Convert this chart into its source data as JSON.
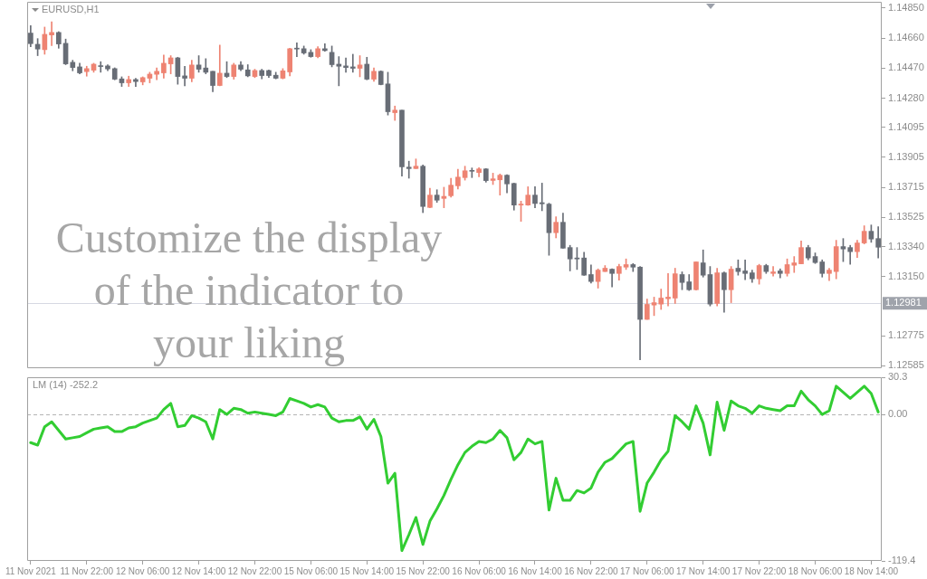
{
  "chart_data": [
    {
      "type": "candlestick",
      "title": "EURUSD,H1",
      "categories": [
        null,
        null,
        null,
        null,
        null,
        null,
        null,
        null,
        null,
        null,
        null,
        null,
        null,
        null,
        null,
        null,
        null,
        null,
        null,
        null,
        null,
        null,
        null,
        null,
        null,
        null,
        null,
        null,
        null,
        null,
        null,
        null,
        null,
        null,
        null,
        null,
        null,
        null,
        null,
        null,
        null,
        null,
        null,
        null,
        null,
        null,
        null,
        null,
        null,
        null,
        null,
        null,
        null,
        null,
        null,
        null,
        null,
        null,
        null,
        null,
        null,
        null,
        null,
        null,
        null,
        null,
        null,
        null,
        null,
        null,
        null,
        null,
        null,
        null,
        null,
        null,
        null,
        null,
        null,
        null,
        null,
        null,
        null,
        null,
        null,
        null,
        null,
        null,
        null,
        null,
        null,
        null,
        null,
        null,
        null,
        null,
        null,
        null,
        null,
        null,
        null,
        null,
        null,
        null,
        null,
        null,
        null,
        null,
        null,
        null,
        null,
        null,
        null,
        null,
        null,
        null,
        null,
        null,
        null,
        null,
        null,
        null
      ],
      "ohlc": [
        [
          1.14692,
          1.14739,
          1.14606,
          1.14625
        ],
        [
          1.14621,
          1.14657,
          1.14549,
          1.14591
        ],
        [
          1.14587,
          1.1473,
          1.14558,
          1.14684
        ],
        [
          1.1468,
          1.14764,
          1.14612,
          1.14696
        ],
        [
          1.14696,
          1.14701,
          1.14596,
          1.14623
        ],
        [
          1.14627,
          1.14654,
          1.14492,
          1.14497
        ],
        [
          1.14507,
          1.1452,
          1.14453,
          1.14474
        ],
        [
          1.14478,
          1.14501,
          1.14434,
          1.1444
        ],
        [
          1.14448,
          1.14482,
          1.14419,
          1.14467
        ],
        [
          1.14457,
          1.14501,
          1.14444,
          1.14495
        ],
        [
          1.14484,
          1.14511,
          1.14444,
          1.1448
        ],
        [
          1.14484,
          1.14492,
          1.14453,
          1.14465
        ],
        [
          1.14467,
          1.14472,
          1.14396,
          1.144
        ],
        [
          1.14402,
          1.14415,
          1.14354,
          1.14377
        ],
        [
          1.14377,
          1.14419,
          1.14354,
          1.14398
        ],
        [
          1.14398,
          1.14406,
          1.14354,
          1.14385
        ],
        [
          1.14383,
          1.14415,
          1.14364,
          1.1441
        ],
        [
          1.14406,
          1.14444,
          1.14377,
          1.14432
        ],
        [
          1.14431,
          1.14472,
          1.14396,
          1.1445
        ],
        [
          1.1444,
          1.14553,
          1.14406,
          1.14501
        ],
        [
          1.14497,
          1.14549,
          1.14434,
          1.14535
        ],
        [
          1.14535,
          1.14539,
          1.14368,
          1.14417
        ],
        [
          1.14421,
          1.14482,
          1.14358,
          1.14406
        ],
        [
          1.14406,
          1.1452,
          1.14383,
          1.1449
        ],
        [
          1.1449,
          1.14549,
          1.14444,
          1.14463
        ],
        [
          1.14471,
          1.1453,
          1.14434,
          1.14444
        ],
        [
          1.1445,
          1.1445,
          1.1432,
          1.1436
        ],
        [
          1.1436,
          1.14616,
          1.14358,
          1.14438
        ],
        [
          1.14438,
          1.14511,
          1.1441,
          1.14417
        ],
        [
          1.14417,
          1.14501,
          1.144,
          1.1449
        ],
        [
          1.1449,
          1.14511,
          1.14453,
          1.14463
        ],
        [
          1.14459,
          1.14492,
          1.14415,
          1.14421
        ],
        [
          1.14417,
          1.14463,
          1.1441,
          1.14455
        ],
        [
          1.14455,
          1.14463,
          1.14402,
          1.14423
        ],
        [
          1.14455,
          1.14459,
          1.1441,
          1.14423
        ],
        [
          1.14425,
          1.14444,
          1.14402,
          1.14406
        ],
        [
          1.14406,
          1.14467,
          1.14402,
          1.14453
        ],
        [
          1.14446,
          1.14596,
          1.14421,
          1.14593
        ],
        [
          1.14595,
          1.14631,
          1.14543,
          1.14591
        ],
        [
          1.14593,
          1.1461,
          1.14558,
          1.14566
        ],
        [
          1.1457,
          1.14587,
          1.14539,
          1.14543
        ],
        [
          1.14543,
          1.14606,
          1.14535,
          1.14593
        ],
        [
          1.14593,
          1.14625,
          1.14577,
          1.14581
        ],
        [
          1.1457,
          1.1461,
          1.14478,
          1.14492
        ],
        [
          1.14495,
          1.14543,
          1.14358,
          1.14482
        ],
        [
          1.14484,
          1.14535,
          1.14444,
          1.14474
        ],
        [
          1.14478,
          1.14558,
          1.14444,
          1.14469
        ],
        [
          1.14469,
          1.14549,
          1.14415,
          1.1449
        ],
        [
          1.14495,
          1.14539,
          1.14396,
          1.144
        ],
        [
          1.144,
          1.14472,
          1.14387,
          1.1445
        ],
        [
          1.1445,
          1.14453,
          1.14364,
          1.14366
        ],
        [
          1.1437,
          1.14444,
          1.14173,
          1.14194
        ],
        [
          1.14188,
          1.1423,
          1.14139,
          1.14204
        ],
        [
          1.14204,
          1.14204,
          1.13786,
          1.13845
        ],
        [
          1.13843,
          1.13881,
          1.13773,
          1.13834
        ],
        [
          1.13834,
          1.13895,
          1.13834,
          1.13849
        ],
        [
          1.13849,
          1.13857,
          1.13555,
          1.13594
        ],
        [
          1.13588,
          1.1371,
          1.13586,
          1.13666
        ],
        [
          1.13666,
          1.137,
          1.1362,
          1.13634
        ],
        [
          1.13645,
          1.13716,
          1.13586,
          1.13658
        ],
        [
          1.13662,
          1.13773,
          1.13653,
          1.13729
        ],
        [
          1.13725,
          1.1383,
          1.13704,
          1.1378
        ],
        [
          1.13777,
          1.13849,
          1.13761,
          1.1382
        ],
        [
          1.1382,
          1.13838,
          1.13777,
          1.13817
        ],
        [
          1.13809,
          1.1384,
          1.13782,
          1.13832
        ],
        [
          1.13832,
          1.13834,
          1.13748,
          1.13758
        ],
        [
          1.13759,
          1.13805,
          1.13733,
          1.13769
        ],
        [
          1.13763,
          1.138,
          1.13666,
          1.13792
        ],
        [
          1.13792,
          1.13796,
          1.13681,
          1.13737
        ],
        [
          1.1374,
          1.13742,
          1.13571,
          1.13603
        ],
        [
          1.13603,
          1.13628,
          1.135,
          1.13609
        ],
        [
          1.13603,
          1.13719,
          1.13601,
          1.13666
        ],
        [
          1.13666,
          1.13719,
          1.13586,
          1.13613
        ],
        [
          1.13618,
          1.13742,
          1.13567,
          1.13611
        ],
        [
          1.13609,
          1.13615,
          1.13285,
          1.13428
        ],
        [
          1.13428,
          1.13529,
          1.13395,
          1.13494
        ],
        [
          1.13494,
          1.13552,
          1.13329,
          1.1333
        ],
        [
          1.13334,
          1.13348,
          1.13186,
          1.13262
        ],
        [
          1.13268,
          1.13334,
          1.13195,
          1.13262
        ],
        [
          1.13268,
          1.13304,
          1.13157,
          1.13159
        ],
        [
          1.13163,
          1.13224,
          1.13109,
          1.13119
        ],
        [
          1.13119,
          1.13199,
          1.13077,
          1.13191
        ],
        [
          1.13182,
          1.1322,
          1.13182,
          1.13203
        ],
        [
          1.13197,
          1.13199,
          1.13085,
          1.1317
        ],
        [
          1.1317,
          1.13228,
          1.13128,
          1.13214
        ],
        [
          1.1321,
          1.13262,
          1.13195,
          1.13226
        ],
        [
          1.13226,
          1.13233,
          1.13182,
          1.1321
        ],
        [
          1.1321,
          1.13214,
          1.12623,
          1.12879
        ],
        [
          1.12879,
          1.13008,
          1.12879,
          1.12974
        ],
        [
          1.1297,
          1.1302,
          1.12903,
          1.12985
        ],
        [
          1.12976,
          1.13071,
          1.12942,
          1.13014
        ],
        [
          1.1301,
          1.1317,
          1.12964,
          1.1302
        ],
        [
          1.13014,
          1.13203,
          1.1298,
          1.13168
        ],
        [
          1.13163,
          1.1318,
          1.13067,
          1.13113
        ],
        [
          1.13117,
          1.13163,
          1.13062,
          1.13067
        ],
        [
          1.13067,
          1.13243,
          1.13065,
          1.13243
        ],
        [
          1.13237,
          1.13319,
          1.13147,
          1.13159
        ],
        [
          1.13163,
          1.13214,
          1.12964,
          1.12976
        ],
        [
          1.1298,
          1.13203,
          1.12964,
          1.13174
        ],
        [
          1.13174,
          1.1318,
          1.12924,
          1.13067
        ],
        [
          1.13067,
          1.13214,
          1.12985,
          1.13197
        ],
        [
          1.13203,
          1.13256,
          1.13159,
          1.13182
        ],
        [
          1.13186,
          1.13256,
          1.1313,
          1.1317
        ],
        [
          1.13174,
          1.13191,
          1.13113,
          1.13136
        ],
        [
          1.13136,
          1.13228,
          1.13102,
          1.1322
        ],
        [
          1.1322,
          1.13228,
          1.1317,
          1.13182
        ],
        [
          1.1317,
          1.13214,
          1.13153,
          1.1318
        ],
        [
          1.13186,
          1.13199,
          1.13142,
          1.1317
        ],
        [
          1.1317,
          1.13262,
          1.13153,
          1.13226
        ],
        [
          1.13222,
          1.13277,
          1.13176,
          1.13237
        ],
        [
          1.13231,
          1.13376,
          1.13231,
          1.13334
        ],
        [
          1.13334,
          1.13348,
          1.13256,
          1.13268
        ],
        [
          1.13277,
          1.133,
          1.13233,
          1.13239
        ],
        [
          1.13243,
          1.13256,
          1.13147,
          1.1317
        ],
        [
          1.1317,
          1.13203,
          1.13125,
          1.13191
        ],
        [
          1.13182,
          1.1338,
          1.13136,
          1.1334
        ],
        [
          1.1334,
          1.13391,
          1.13245,
          1.13325
        ],
        [
          1.13334,
          1.13348,
          1.13228,
          1.13308
        ],
        [
          1.13308,
          1.1338,
          1.13271,
          1.13363
        ],
        [
          1.13363,
          1.13472,
          1.13357,
          1.13437
        ],
        [
          1.13437,
          1.13477,
          1.13367,
          1.13388
        ],
        [
          1.13391,
          1.13466,
          1.13268,
          1.13336
        ]
      ],
      "colors": [
        "#686d76",
        "#686d76",
        "#ee8372",
        "#ee8372",
        "#686d76",
        "#686d76",
        "#686d76",
        "#686d76",
        "#ee8372",
        "#ee8372",
        "#686d76",
        "#686d76",
        "#686d76",
        "#686d76",
        "#ee8372",
        "#686d76",
        "#ee8372",
        "#ee8372",
        "#ee8372",
        "#ee8372",
        "#ee8372",
        "#686d76",
        "#686d76",
        "#ee8372",
        "#686d76",
        "#686d76",
        "#686d76",
        "#ee8372",
        "#686d76",
        "#ee8372",
        "#686d76",
        "#686d76",
        "#ee8372",
        "#686d76",
        "#686d76",
        "#686d76",
        "#ee8372",
        "#ee8372",
        "#686d76",
        "#686d76",
        "#686d76",
        "#ee8372",
        "#686d76",
        "#686d76",
        "#686d76",
        "#686d76",
        "#686d76",
        "#ee8372",
        "#686d76",
        "#ee8372",
        "#686d76",
        "#686d76",
        "#ee8372",
        "#686d76",
        "#686d76",
        "#ee8372",
        "#686d76",
        "#ee8372",
        "#686d76",
        "#ee8372",
        "#ee8372",
        "#ee8372",
        "#ee8372",
        "#686d76",
        "#ee8372",
        "#686d76",
        "#ee8372",
        "#ee8372",
        "#686d76",
        "#686d76",
        "#ee8372",
        "#ee8372",
        "#686d76",
        "#686d76",
        "#686d76",
        "#ee8372",
        "#686d76",
        "#686d76",
        "#686d76",
        "#686d76",
        "#686d76",
        "#ee8372",
        "#ee8372",
        "#686d76",
        "#ee8372",
        "#ee8372",
        "#686d76",
        "#686d76",
        "#ee8372",
        "#ee8372",
        "#ee8372",
        "#ee8372",
        "#ee8372",
        "#686d76",
        "#686d76",
        "#ee8372",
        "#686d76",
        "#686d76",
        "#ee8372",
        "#686d76",
        "#ee8372",
        "#686d76",
        "#686d76",
        "#686d76",
        "#ee8372",
        "#686d76",
        "#ee8372",
        "#686d76",
        "#ee8372",
        "#ee8372",
        "#ee8372",
        "#686d76",
        "#686d76",
        "#686d76",
        "#ee8372",
        "#ee8372",
        "#686d76",
        "#686d76",
        "#ee8372",
        "#ee8372",
        "#686d76",
        "#686d76"
      ],
      "ylim": [
        1.1257,
        1.1489
      ],
      "yticks": [
        {
          "value": 1.1485,
          "label": "1.14850"
        },
        {
          "value": 1.1466,
          "label": "1.14660"
        },
        {
          "value": 1.1447,
          "label": "1.14470"
        },
        {
          "value": 1.1428,
          "label": "1.14280"
        },
        {
          "value": 1.14095,
          "label": "1.14095"
        },
        {
          "value": 1.13905,
          "label": "1.13905"
        },
        {
          "value": 1.13715,
          "label": "1.13715"
        },
        {
          "value": 1.13525,
          "label": "1.13525"
        },
        {
          "value": 1.1334,
          "label": "1.13340"
        },
        {
          "value": 1.1315,
          "label": "1.13150"
        },
        {
          "value": 1.12775,
          "label": "1.12775"
        },
        {
          "value": 1.12585,
          "label": "1.12585"
        }
      ],
      "ref_lines": [
        {
          "axis": "y",
          "value": 1.12981,
          "label": "1.12981",
          "color": "#d6d8e2"
        }
      ],
      "annotations": [
        "Customize the display of the indicator to your liking"
      ],
      "grid": false,
      "legend": false,
      "tick_labels": "y"
    },
    {
      "type": "line",
      "title": "LM (14) -252.2",
      "categories": [
        "11 Nov 2021",
        null,
        null,
        null,
        null,
        null,
        null,
        null,
        "11 Nov 22:00",
        null,
        null,
        null,
        null,
        null,
        null,
        null,
        "12 Nov 06:00",
        null,
        null,
        null,
        null,
        null,
        null,
        null,
        "12 Nov 14:00",
        null,
        null,
        null,
        null,
        null,
        null,
        null,
        "12 Nov 22:00",
        null,
        null,
        null,
        null,
        null,
        null,
        null,
        "15 Nov 06:00",
        null,
        null,
        null,
        null,
        null,
        null,
        null,
        "15 Nov 14:00",
        null,
        null,
        null,
        null,
        null,
        null,
        null,
        "15 Nov 22:00",
        null,
        null,
        null,
        null,
        null,
        null,
        null,
        "16 Nov 06:00",
        null,
        null,
        null,
        null,
        null,
        null,
        null,
        "16 Nov 14:00",
        null,
        null,
        null,
        null,
        null,
        null,
        null,
        "16 Nov 22:00",
        null,
        null,
        null,
        null,
        null,
        null,
        null,
        "17 Nov 06:00",
        null,
        null,
        null,
        null,
        null,
        null,
        null,
        "17 Nov 14:00",
        null,
        null,
        null,
        null,
        null,
        null,
        null,
        "17 Nov 22:00",
        null,
        null,
        null,
        null,
        null,
        null,
        null,
        "18 Nov 06:00",
        null,
        null,
        null,
        null,
        null,
        null,
        null,
        "18 Nov 14:00",
        null
      ],
      "series": [
        {
          "color": "#32cd32",
          "values": [
            -23,
            -25,
            -10,
            -6,
            -13,
            -20,
            -19,
            -18,
            -15,
            -12,
            -11,
            -10,
            -14,
            -14,
            -11,
            -10,
            -7,
            -5,
            -3,
            4,
            9,
            -10,
            -9,
            -1,
            -3,
            -6,
            -20,
            4,
            0,
            5,
            4,
            1,
            2,
            1,
            0,
            -1,
            2,
            13,
            11,
            9,
            6,
            8,
            6,
            -3,
            -6,
            -5,
            -5,
            -2,
            -12,
            -4,
            -18,
            -56,
            -48,
            -111,
            -98,
            -84,
            -106,
            -87,
            -77,
            -66,
            -53,
            -41,
            -31,
            -26,
            -22,
            -23,
            -20,
            -13,
            -19,
            -37,
            -31,
            -20,
            -24,
            -22,
            -78,
            -52,
            -70,
            -70,
            -62,
            -64,
            -60,
            -47,
            -39,
            -36,
            -30,
            -24,
            -22,
            -79,
            -56,
            -47,
            -37,
            -30,
            -1,
            -6,
            -12,
            7,
            -7,
            -33,
            10,
            -13,
            11,
            7,
            5,
            1,
            7,
            5,
            4,
            3,
            7,
            7,
            19,
            12,
            7,
            0,
            3,
            23,
            18,
            13,
            18,
            23,
            17,
            2
          ]
        }
      ],
      "ylim": [
        -119.4,
        30.3
      ],
      "yticks": [
        -119.4,
        {
          "value": 0,
          "label": "0.00"
        },
        30.3
      ],
      "ref_lines": [
        {
          "axis": "y",
          "value": 0,
          "line_style": "dashed",
          "color": "#b4b4b4"
        }
      ],
      "marker": "none",
      "grid": false,
      "legend": false
    }
  ]
}
